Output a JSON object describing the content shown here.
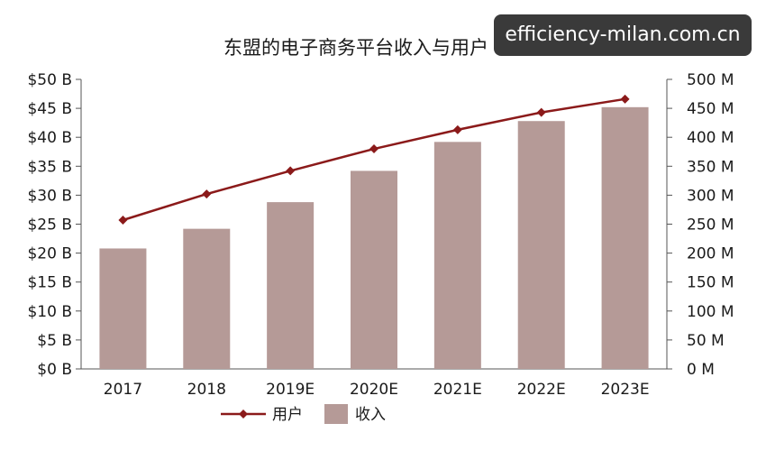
{
  "watermark": "efficiency-milan.com.cn",
  "chart_data": {
    "type": "bar",
    "title": "东盟的电子商务平台收入与用户",
    "categories": [
      "2017",
      "2018",
      "2019E",
      "2020E",
      "2021E",
      "2022E",
      "2023E"
    ],
    "series": [
      {
        "name": "收入",
        "type": "bar",
        "axis": "left",
        "values": [
          20.8,
          24.2,
          28.8,
          34.2,
          39.2,
          42.8,
          45.2
        ],
        "color": "#b59a97"
      },
      {
        "name": "用户",
        "type": "line",
        "axis": "right",
        "values": [
          257,
          302,
          342,
          380,
          413,
          443,
          466
        ],
        "color": "#8b1a1a"
      }
    ],
    "y_left": {
      "ticks": [
        "$0 B",
        "$5 B",
        "$10 B",
        "$15 B",
        "$20 B",
        "$25 B",
        "$30 B",
        "$35 B",
        "$40 B",
        "$45 B",
        "$50 B"
      ],
      "range": [
        0,
        50
      ]
    },
    "y_right": {
      "ticks": [
        "0 M",
        "50 M",
        "100 M",
        "150 M",
        "200 M",
        "250 M",
        "300 M",
        "350 M",
        "400 M",
        "450 M",
        "500 M"
      ],
      "range": [
        0,
        500
      ]
    },
    "legend": {
      "placement": "bottom",
      "items": [
        "用户",
        "收入"
      ]
    },
    "grid": false
  }
}
